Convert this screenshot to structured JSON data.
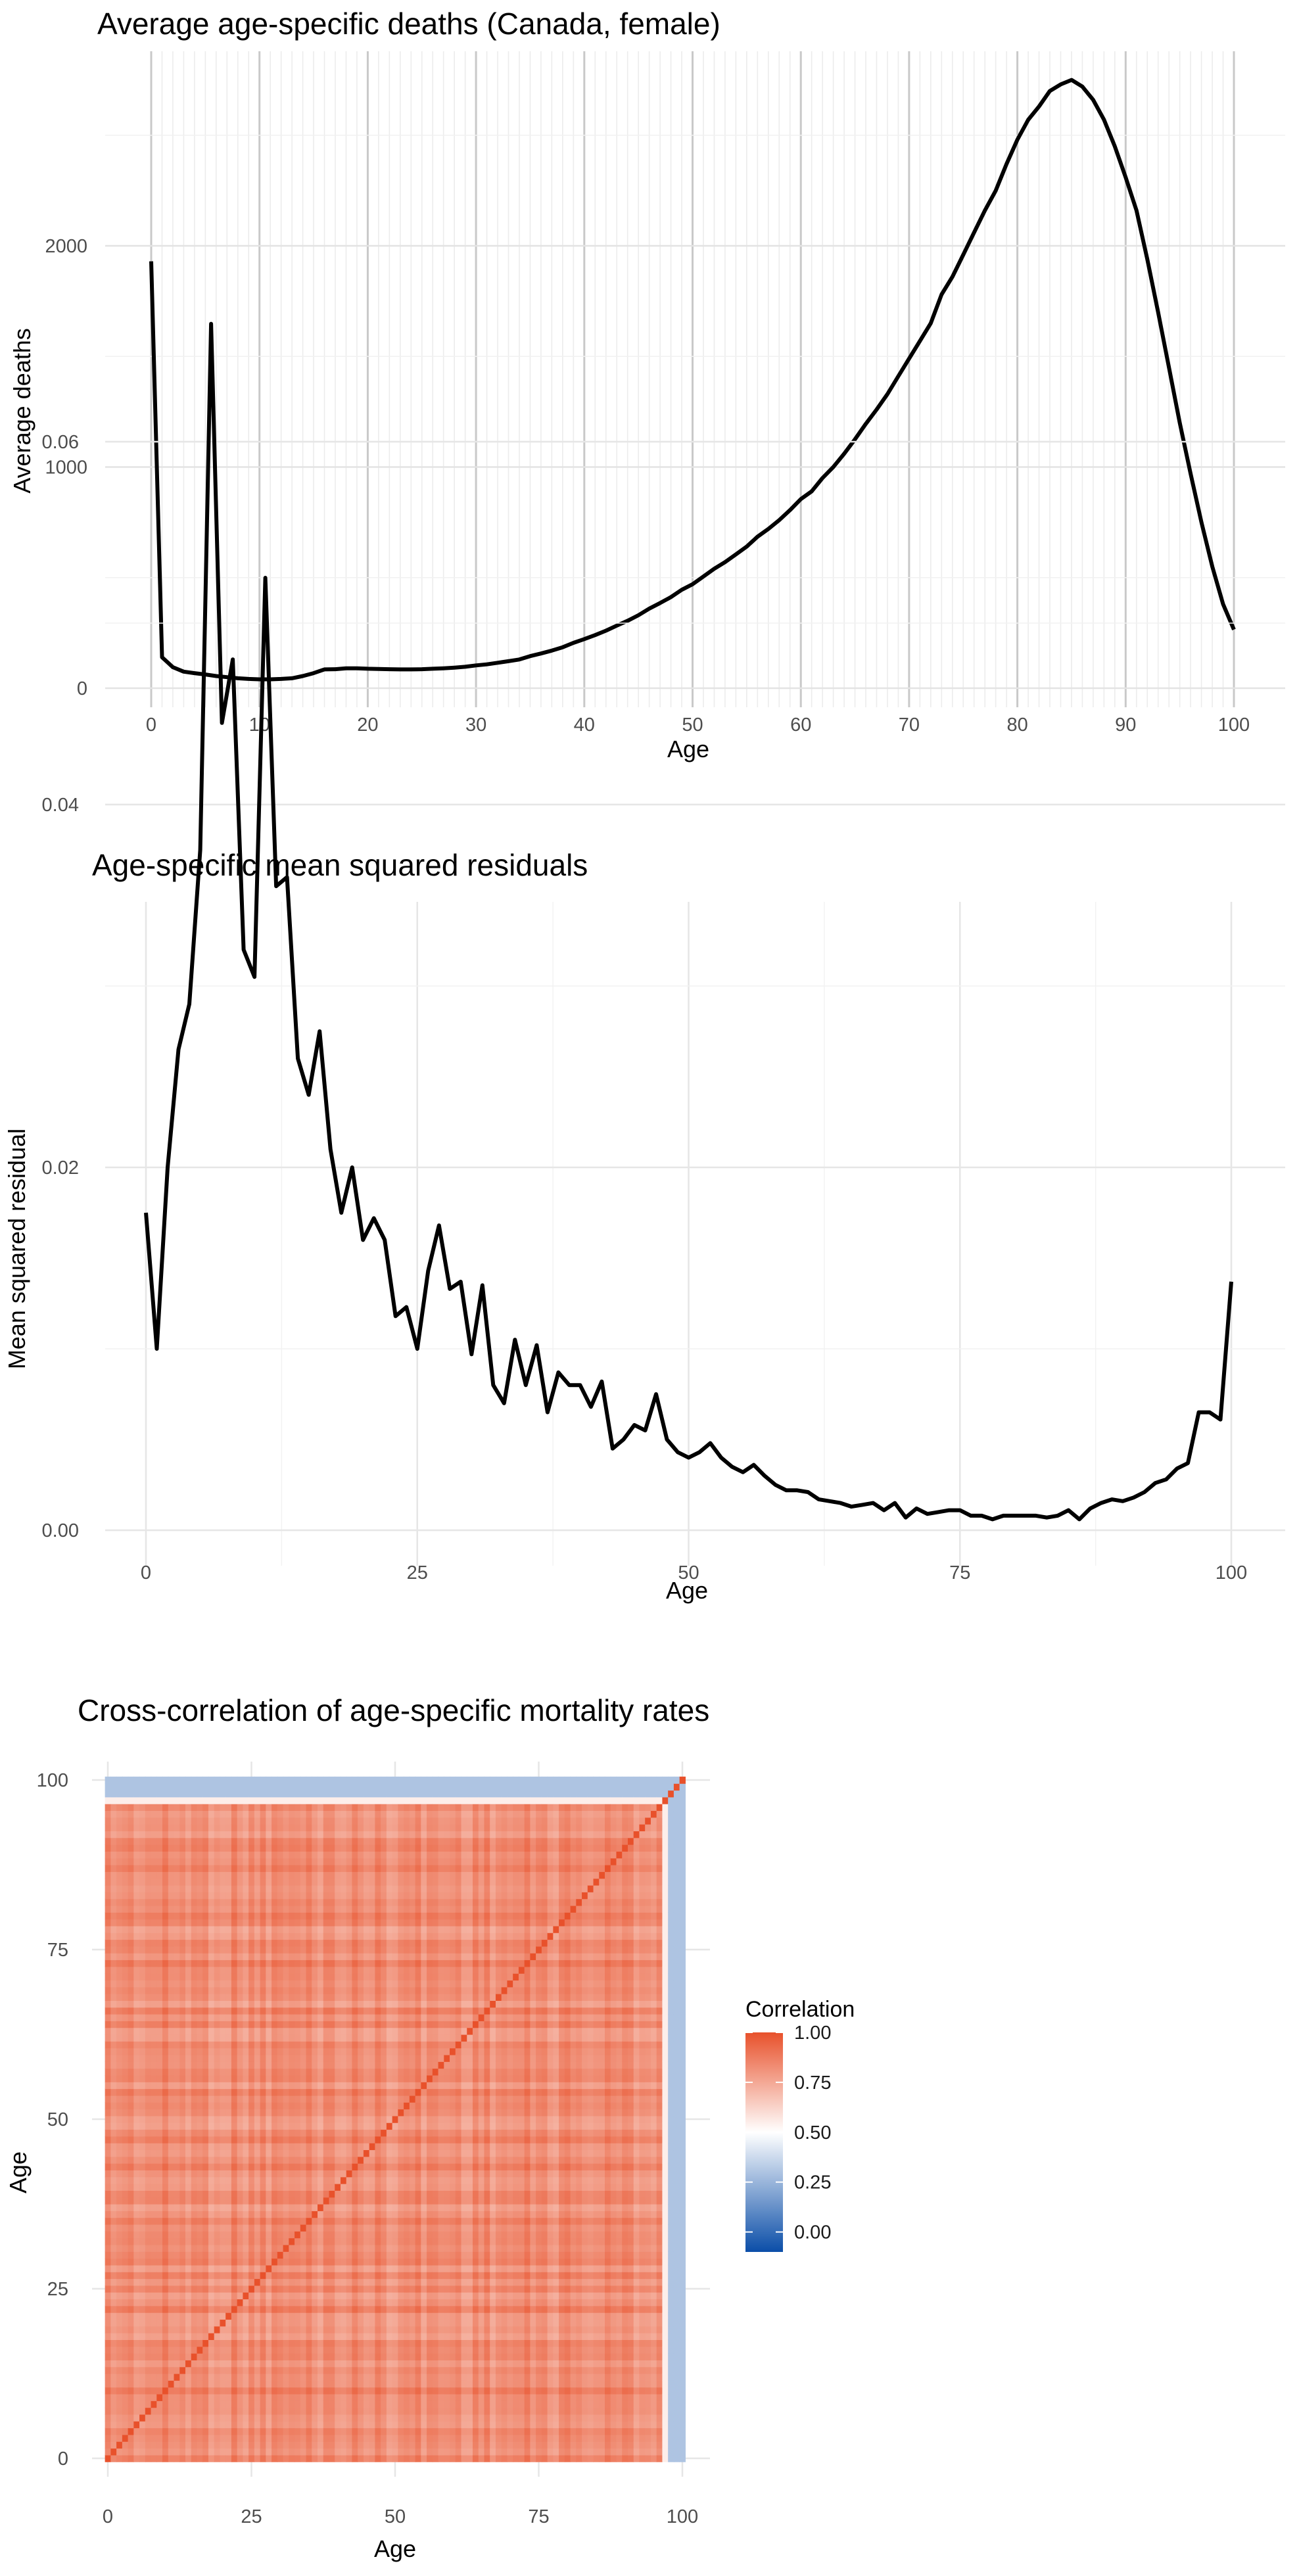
{
  "chart_data": [
    {
      "type": "line",
      "title": "Average age-specific deaths (Canada, female)",
      "xlabel": "Age",
      "ylabel": "Average deaths",
      "xlim": [
        0,
        100
      ],
      "ylim": [
        0,
        2750
      ],
      "xticks": [
        0,
        10,
        20,
        30,
        40,
        50,
        60,
        70,
        80,
        90,
        100
      ],
      "yticks": [
        0,
        1000,
        2000
      ],
      "grid": true,
      "x": [
        0,
        1,
        2,
        3,
        4,
        5,
        6,
        7,
        8,
        9,
        10,
        11,
        12,
        13,
        14,
        15,
        16,
        17,
        18,
        19,
        20,
        21,
        22,
        23,
        24,
        25,
        26,
        27,
        28,
        29,
        30,
        31,
        32,
        33,
        34,
        35,
        36,
        37,
        38,
        39,
        40,
        41,
        42,
        43,
        44,
        45,
        46,
        47,
        48,
        49,
        50,
        51,
        52,
        53,
        54,
        55,
        56,
        57,
        58,
        59,
        60,
        61,
        62,
        63,
        64,
        65,
        66,
        67,
        68,
        69,
        70,
        71,
        72,
        73,
        74,
        75,
        76,
        77,
        78,
        79,
        80,
        81,
        82,
        83,
        84,
        85,
        86,
        87,
        88,
        89,
        90,
        91,
        92,
        93,
        94,
        95,
        96,
        97,
        98,
        99,
        100
      ],
      "values": [
        1930,
        140,
        95,
        75,
        68,
        62,
        55,
        50,
        45,
        42,
        40,
        40,
        42,
        45,
        55,
        68,
        85,
        86,
        90,
        90,
        88,
        87,
        86,
        85,
        85,
        86,
        88,
        90,
        93,
        97,
        103,
        108,
        115,
        122,
        130,
        145,
        157,
        170,
        185,
        205,
        222,
        240,
        260,
        283,
        305,
        330,
        360,
        385,
        412,
        445,
        470,
        505,
        540,
        570,
        605,
        640,
        685,
        720,
        760,
        805,
        855,
        890,
        950,
        1000,
        1060,
        1125,
        1195,
        1260,
        1330,
        1410,
        1490,
        1570,
        1650,
        1780,
        1860,
        1960,
        2060,
        2160,
        2250,
        2370,
        2480,
        2570,
        2630,
        2700,
        2730,
        2750,
        2720,
        2660,
        2570,
        2450,
        2310,
        2160,
        1940,
        1700,
        1450,
        1200,
        970,
        750,
        550,
        380,
        265
      ]
    },
    {
      "type": "line",
      "title": "Age-specific mean squared residuals",
      "xlabel": "Age",
      "ylabel": "Mean squared residual",
      "xlim": [
        0,
        100
      ],
      "ylim": [
        0,
        0.066
      ],
      "xticks": [
        0,
        25,
        50,
        75,
        100
      ],
      "yticks": [
        0.0,
        0.02,
        0.04,
        0.06
      ],
      "ytick_labels": [
        "0.00",
        "0.02",
        "0.04",
        "0.06"
      ],
      "grid": true,
      "x": [
        0,
        1,
        2,
        3,
        4,
        5,
        6,
        7,
        8,
        9,
        10,
        11,
        12,
        13,
        14,
        15,
        16,
        17,
        18,
        19,
        20,
        21,
        22,
        23,
        24,
        25,
        26,
        27,
        28,
        29,
        30,
        31,
        32,
        33,
        34,
        35,
        36,
        37,
        38,
        39,
        40,
        41,
        42,
        43,
        44,
        45,
        46,
        47,
        48,
        49,
        50,
        51,
        52,
        53,
        54,
        55,
        56,
        57,
        58,
        59,
        60,
        61,
        62,
        63,
        64,
        65,
        66,
        67,
        68,
        69,
        70,
        71,
        72,
        73,
        74,
        75,
        76,
        77,
        78,
        79,
        80,
        81,
        82,
        83,
        84,
        85,
        86,
        87,
        88,
        89,
        90,
        91,
        92,
        93,
        94,
        95,
        96,
        97,
        98,
        99,
        100
      ],
      "values": [
        0.0175,
        0.01,
        0.02,
        0.0265,
        0.029,
        0.0375,
        0.0665,
        0.0445,
        0.048,
        0.032,
        0.0305,
        0.0525,
        0.0355,
        0.036,
        0.026,
        0.024,
        0.0275,
        0.021,
        0.0175,
        0.02,
        0.016,
        0.0172,
        0.016,
        0.0118,
        0.0123,
        0.01,
        0.0143,
        0.0168,
        0.0133,
        0.0137,
        0.0097,
        0.0135,
        0.008,
        0.007,
        0.0105,
        0.008,
        0.0102,
        0.0065,
        0.0087,
        0.008,
        0.008,
        0.0068,
        0.0082,
        0.0045,
        0.005,
        0.0058,
        0.0055,
        0.0075,
        0.005,
        0.0043,
        0.004,
        0.0043,
        0.0048,
        0.004,
        0.0035,
        0.0032,
        0.0036,
        0.003,
        0.0025,
        0.0022,
        0.0022,
        0.0021,
        0.0017,
        0.0016,
        0.0015,
        0.0013,
        0.0014,
        0.0015,
        0.0011,
        0.0015,
        0.0007,
        0.0012,
        0.0009,
        0.001,
        0.0011,
        0.0011,
        0.0008,
        0.0008,
        0.0006,
        0.0008,
        0.0008,
        0.0008,
        0.0008,
        0.0007,
        0.0008,
        0.0011,
        0.0006,
        0.0012,
        0.0015,
        0.0017,
        0.0016,
        0.0018,
        0.0021,
        0.0026,
        0.0028,
        0.0034,
        0.0037,
        0.0065,
        0.0065,
        0.0061,
        0.0137
      ]
    },
    {
      "type": "heatmap",
      "title": "Cross-correlation of age-specific mortality rates",
      "xlabel": "Age",
      "ylabel": "Age",
      "xlim": [
        0,
        100
      ],
      "ylim": [
        0,
        100
      ],
      "xticks": [
        0,
        25,
        50,
        75,
        100
      ],
      "yticks": [
        0,
        25,
        50,
        75,
        100
      ],
      "legend_title": "Correlation",
      "legend_ticks": [
        "0.00",
        "0.25",
        "0.50",
        "0.75",
        "1.00"
      ],
      "color_range": [
        -0.1,
        1.0
      ],
      "colors": {
        "low": "#0b4ea8",
        "mid": "#ffffff",
        "high": "#e8512b"
      },
      "structure": {
        "ages_0_to_96_correlation": 0.94,
        "age_97_correlation": 0.55,
        "ages_98_to_100_correlation": 0.3,
        "diagonal": 1.0
      }
    }
  ]
}
